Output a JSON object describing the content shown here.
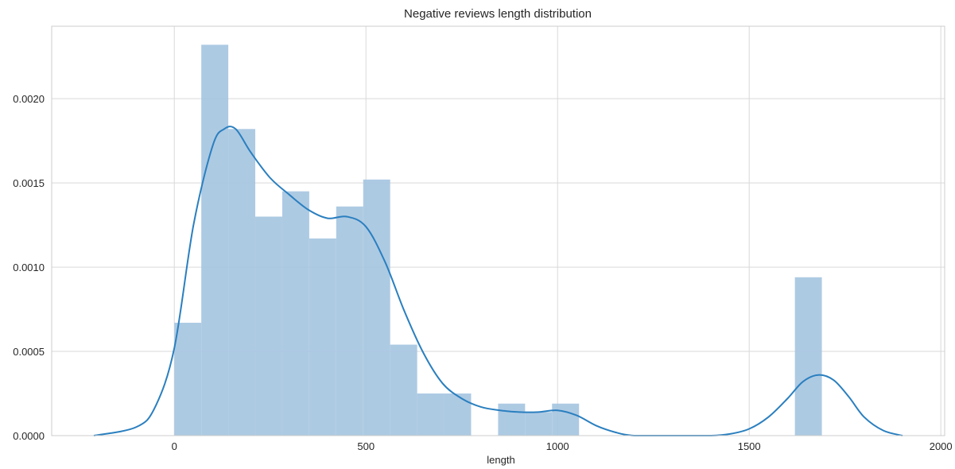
{
  "chart_data": {
    "type": "bar",
    "title": "Negative reviews length distribution",
    "xlabel": "length",
    "ylabel": "",
    "xlim": [
      -320,
      2010
    ],
    "ylim": [
      0,
      0.00243
    ],
    "grid": true,
    "style": "seaborn-whitegrid",
    "colors": {
      "hist": "#a4c4e0",
      "kde": "#2a7fbf",
      "grid": "#d9d9d9",
      "spine": "#cccccc",
      "text": "#262626"
    },
    "xticks": [
      0,
      500,
      1000,
      1500,
      2000
    ],
    "xtick_labels": [
      "0",
      "500",
      "1000",
      "1500",
      "2000"
    ],
    "yticks": [
      0.0,
      0.0005,
      0.001,
      0.0015,
      0.002
    ],
    "ytick_labels": [
      "0.0000",
      "0.0005",
      "0.0010",
      "0.0015",
      "0.0020"
    ],
    "histogram": {
      "bin_width": 70.4,
      "bins": [
        {
          "x0": 0.0,
          "value": 0.00067
        },
        {
          "x0": 70.4,
          "value": 0.00232
        },
        {
          "x0": 140.8,
          "value": 0.00182
        },
        {
          "x0": 211.2,
          "value": 0.0013
        },
        {
          "x0": 281.6,
          "value": 0.00145
        },
        {
          "x0": 352.0,
          "value": 0.00117
        },
        {
          "x0": 422.4,
          "value": 0.00136
        },
        {
          "x0": 492.8,
          "value": 0.00152
        },
        {
          "x0": 563.2,
          "value": 0.00054
        },
        {
          "x0": 633.6,
          "value": 0.00025
        },
        {
          "x0": 704.0,
          "value": 0.00025
        },
        {
          "x0": 774.4,
          "value": 0.0
        },
        {
          "x0": 844.8,
          "value": 0.00019
        },
        {
          "x0": 915.2,
          "value": 0.00014
        },
        {
          "x0": 985.6,
          "value": 0.00019
        },
        {
          "x0": 1619.2,
          "value": 0.00094
        }
      ]
    },
    "kde": {
      "name": "",
      "x": [
        -210,
        -100,
        -50,
        0,
        50,
        100,
        130,
        160,
        200,
        250,
        300,
        350,
        400,
        450,
        500,
        550,
        600,
        650,
        700,
        750,
        800,
        850,
        900,
        950,
        1000,
        1050,
        1100,
        1150,
        1200,
        1300,
        1400,
        1450,
        1500,
        1550,
        1600,
        1640,
        1680,
        1720,
        1760,
        1800,
        1850,
        1900
      ],
      "y": [
        0.0,
        5e-05,
        0.00017,
        0.00052,
        0.00125,
        0.00172,
        0.00182,
        0.00182,
        0.00168,
        0.00153,
        0.00143,
        0.00134,
        0.00129,
        0.0013,
        0.00124,
        0.00103,
        0.00074,
        0.00049,
        0.00031,
        0.00022,
        0.00017,
        0.00015,
        0.00014,
        0.00014,
        0.00015,
        0.00012,
        6e-05,
        2e-05,
        0.0,
        0.0,
        0.0,
        1e-05,
        4e-05,
        0.00011,
        0.00022,
        0.00032,
        0.00036,
        0.00033,
        0.00023,
        0.00011,
        3e-05,
        0.0
      ]
    }
  }
}
